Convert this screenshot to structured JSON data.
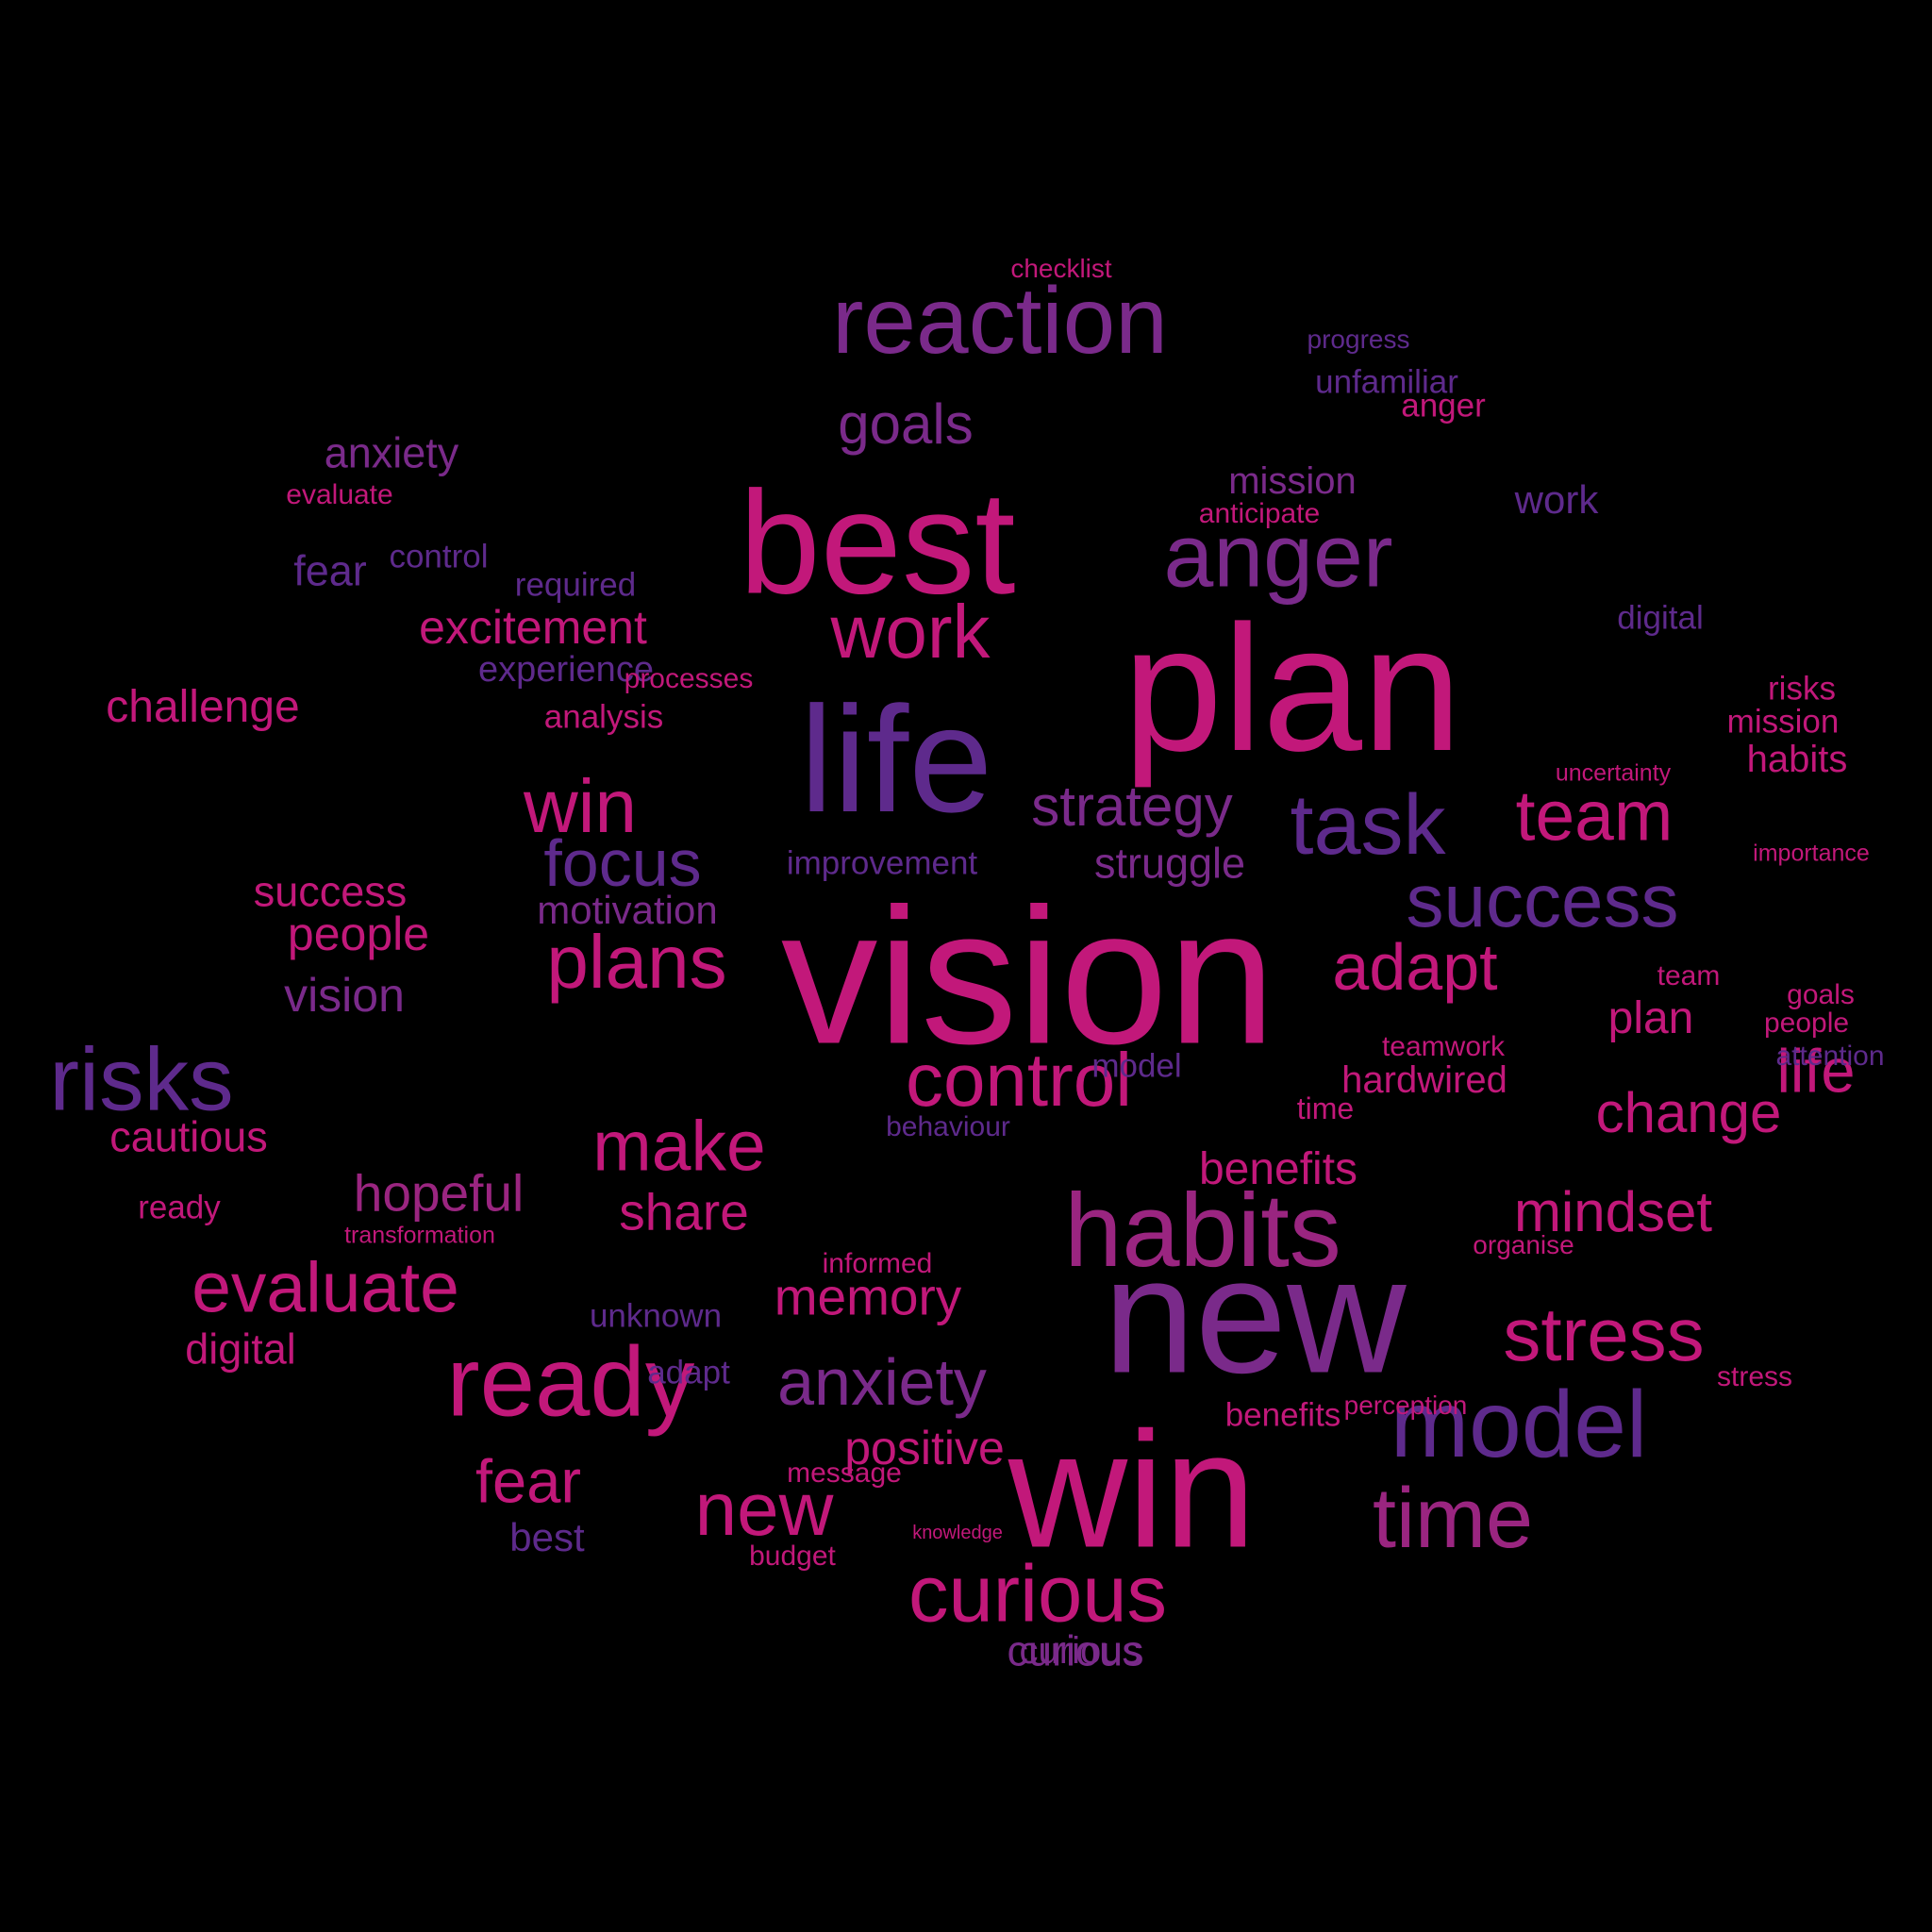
{
  "palette": {
    "magenta": "#C2187A",
    "rose": "#B51C6E",
    "purple": "#5E2A8C",
    "violet": "#7A2A8A",
    "plum": "#9A2580",
    "background": "#000000"
  },
  "words": [
    {
      "text": "vision",
      "color": "magenta"
    },
    {
      "text": "plan",
      "color": "magenta"
    },
    {
      "text": "new",
      "color": "violet"
    },
    {
      "text": "win",
      "color": "magenta"
    },
    {
      "text": "life",
      "color": "purple"
    },
    {
      "text": "best",
      "color": "magenta"
    },
    {
      "text": "reaction",
      "color": "violet"
    },
    {
      "text": "ready",
      "color": "magenta"
    },
    {
      "text": "habits",
      "color": "plum"
    },
    {
      "text": "model",
      "color": "purple"
    },
    {
      "text": "anger",
      "color": "violet"
    },
    {
      "text": "success",
      "color": "purple"
    },
    {
      "text": "risks",
      "color": "purple"
    },
    {
      "text": "task",
      "color": "purple"
    },
    {
      "text": "stress",
      "color": "magenta"
    },
    {
      "text": "control",
      "color": "magenta"
    },
    {
      "text": "time",
      "color": "plum"
    },
    {
      "text": "curious",
      "color": "magenta"
    },
    {
      "text": "work",
      "color": "magenta"
    },
    {
      "text": "evaluate",
      "color": "magenta"
    },
    {
      "text": "anxiety",
      "color": "violet"
    },
    {
      "text": "team",
      "color": "magenta"
    },
    {
      "text": "make",
      "color": "magenta"
    },
    {
      "text": "new",
      "color": "magenta"
    },
    {
      "text": "adapt",
      "color": "magenta"
    },
    {
      "text": "plans",
      "color": "magenta"
    },
    {
      "text": "win",
      "color": "magenta"
    },
    {
      "text": "focus",
      "color": "purple"
    },
    {
      "text": "goals",
      "color": "violet"
    },
    {
      "text": "fear",
      "color": "magenta"
    },
    {
      "text": "mindset",
      "color": "magenta"
    },
    {
      "text": "change",
      "color": "magenta"
    },
    {
      "text": "strategy",
      "color": "violet"
    },
    {
      "text": "share",
      "color": "magenta"
    },
    {
      "text": "memory",
      "color": "magenta"
    },
    {
      "text": "positive",
      "color": "magenta"
    },
    {
      "text": "excitement",
      "color": "magenta"
    },
    {
      "text": "hopeful",
      "color": "plum"
    },
    {
      "text": "people",
      "color": "magenta"
    },
    {
      "text": "challenge",
      "color": "magenta"
    },
    {
      "text": "life",
      "color": "magenta"
    },
    {
      "text": "vision",
      "color": "violet"
    },
    {
      "text": "benefits",
      "color": "magenta"
    },
    {
      "text": "plan",
      "color": "magenta"
    },
    {
      "text": "struggle",
      "color": "violet"
    },
    {
      "text": "anxiety",
      "color": "violet"
    },
    {
      "text": "success",
      "color": "magenta"
    },
    {
      "text": "digital",
      "color": "magenta"
    },
    {
      "text": "cautious",
      "color": "magenta"
    },
    {
      "text": "curious",
      "color": "violet"
    },
    {
      "text": "motivation",
      "color": "violet"
    },
    {
      "text": "improvement",
      "color": "purple"
    },
    {
      "text": "experience",
      "color": "purple"
    },
    {
      "text": "mission",
      "color": "violet"
    },
    {
      "text": "hardwired",
      "color": "magenta"
    },
    {
      "text": "teamwork",
      "color": "magenta"
    },
    {
      "text": "work",
      "color": "purple"
    },
    {
      "text": "best",
      "color": "purple"
    },
    {
      "text": "team",
      "color": "magenta"
    },
    {
      "text": "unfamiliar",
      "color": "purple"
    },
    {
      "text": "anger",
      "color": "magenta"
    },
    {
      "text": "anticipate",
      "color": "magenta"
    },
    {
      "text": "risks",
      "color": "magenta"
    },
    {
      "text": "ready",
      "color": "magenta"
    },
    {
      "text": "analysis",
      "color": "magenta"
    },
    {
      "text": "required",
      "color": "purple"
    },
    {
      "text": "control",
      "color": "purple"
    },
    {
      "text": "processes",
      "color": "magenta"
    },
    {
      "text": "digital",
      "color": "purple"
    },
    {
      "text": "habits",
      "color": "magenta"
    },
    {
      "text": "mission",
      "color": "magenta"
    },
    {
      "text": "fear",
      "color": "purple"
    },
    {
      "text": "transformation",
      "color": "magenta"
    },
    {
      "text": "unknown",
      "color": "purple"
    },
    {
      "text": "benefits",
      "color": "magenta"
    },
    {
      "text": "adapt",
      "color": "purple"
    },
    {
      "text": "behaviour",
      "color": "purple"
    },
    {
      "text": "model",
      "color": "purple"
    },
    {
      "text": "informed",
      "color": "magenta"
    },
    {
      "text": "budget",
      "color": "magenta"
    },
    {
      "text": "message",
      "color": "magenta"
    },
    {
      "text": "uncertainty",
      "color": "magenta"
    },
    {
      "text": "evaluate",
      "color": "magenta"
    },
    {
      "text": "time",
      "color": "magenta"
    },
    {
      "text": "stress",
      "color": "magenta"
    },
    {
      "text": "progress",
      "color": "purple"
    },
    {
      "text": "goals",
      "color": "magenta"
    },
    {
      "text": "people",
      "color": "magenta"
    },
    {
      "text": "attention",
      "color": "purple"
    },
    {
      "text": "importance",
      "color": "magenta"
    },
    {
      "text": "checklist",
      "color": "magenta"
    },
    {
      "text": "organise",
      "color": "magenta"
    },
    {
      "text": "perception",
      "color": "magenta"
    },
    {
      "text": "curious",
      "color": "violet"
    },
    {
      "text": "knowledge",
      "color": "magenta"
    }
  ]
}
